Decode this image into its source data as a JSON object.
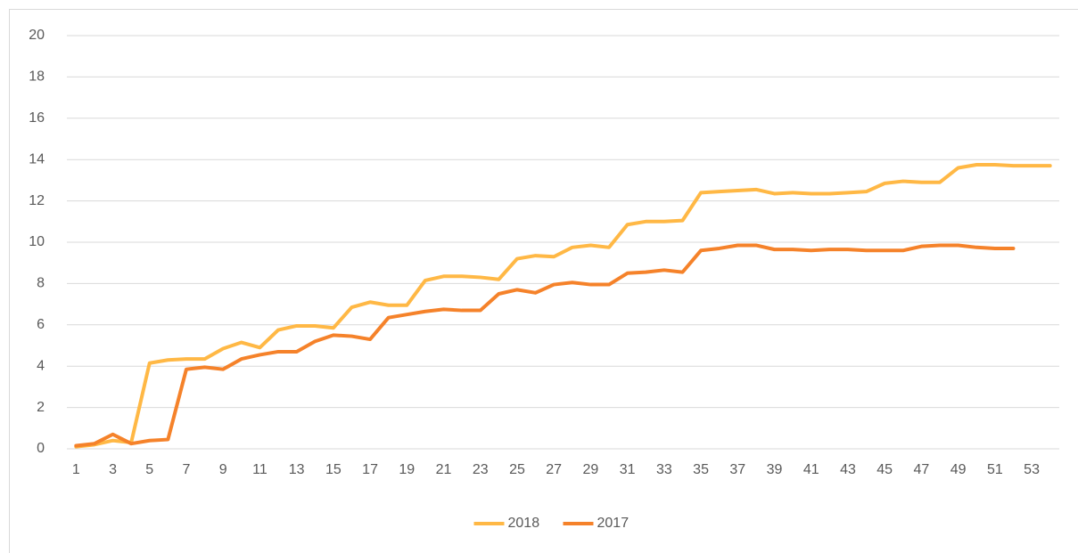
{
  "chart_data": {
    "type": "line",
    "categories": [
      1,
      null,
      3,
      null,
      5,
      null,
      7,
      null,
      9,
      null,
      11,
      null,
      13,
      null,
      15,
      null,
      17,
      null,
      19,
      null,
      21,
      null,
      23,
      null,
      25,
      null,
      27,
      null,
      29,
      null,
      31,
      null,
      33,
      null,
      35,
      null,
      37,
      null,
      39,
      null,
      41,
      null,
      43,
      null,
      45,
      null,
      47,
      null,
      49,
      null,
      51,
      null,
      53,
      null
    ],
    "series": [
      {
        "name": "2018",
        "color": "#ffb845",
        "values": [
          0.1,
          0.2,
          0.4,
          0.3,
          4.15,
          4.3,
          4.35,
          4.35,
          4.85,
          5.15,
          4.9,
          5.75,
          5.95,
          5.95,
          5.85,
          6.85,
          7.1,
          6.95,
          6.95,
          8.15,
          8.35,
          8.35,
          8.3,
          8.2,
          9.2,
          9.35,
          9.3,
          9.75,
          9.85,
          9.75,
          10.85,
          11.0,
          11.0,
          11.05,
          12.4,
          12.45,
          12.5,
          12.55,
          12.35,
          12.4,
          12.35,
          12.35,
          12.4,
          12.45,
          12.85,
          12.95,
          12.9,
          12.9,
          13.6,
          13.75,
          13.75,
          13.7,
          13.7,
          13.7
        ]
      },
      {
        "name": "2017",
        "color": "#f5822a",
        "values": [
          0.15,
          0.25,
          0.7,
          0.25,
          0.4,
          0.45,
          3.85,
          3.95,
          3.85,
          4.35,
          4.55,
          4.7,
          4.7,
          5.2,
          5.5,
          5.45,
          5.3,
          6.35,
          6.5,
          6.65,
          6.75,
          6.7,
          6.7,
          7.5,
          7.7,
          7.55,
          7.95,
          8.05,
          7.95,
          7.95,
          8.5,
          8.55,
          8.65,
          8.55,
          9.6,
          9.7,
          9.85,
          9.85,
          9.65,
          9.65,
          9.6,
          9.65,
          9.65,
          9.6,
          9.6,
          9.6,
          9.8,
          9.85,
          9.85,
          9.75,
          9.7,
          9.7,
          null,
          null
        ]
      }
    ],
    "ylim": [
      0,
      20
    ],
    "yticks": [
      0,
      2,
      4,
      6,
      8,
      10,
      12,
      14,
      16,
      18,
      20
    ],
    "grid": true,
    "legend": "bottom"
  }
}
